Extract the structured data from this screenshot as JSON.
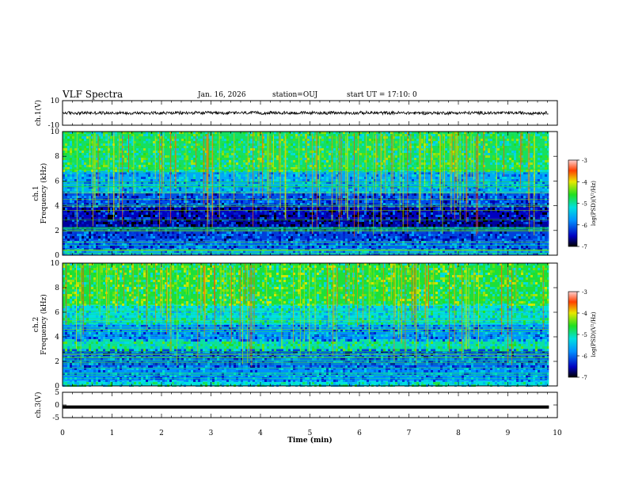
{
  "header": {
    "title": "VLF Spectra",
    "date": "Jan. 16, 2026",
    "station": "station=OUJ",
    "start": "start UT =  17:10: 0"
  },
  "chart_data": [
    {
      "type": "line",
      "name": "ch1-waveform",
      "ylabel": "ch.1(V)",
      "ylim": [
        -10,
        10
      ],
      "yticks": [
        "10",
        "-10"
      ],
      "xlim": [
        0,
        10
      ],
      "trace_amplitude": [
        -1.5,
        1.5
      ],
      "line_color": "#000000"
    },
    {
      "type": "heatmap",
      "name": "ch1-spectrogram",
      "ylabel_top": "ch.1",
      "ylabel": "Frequency (kHz)",
      "ylim": [
        0,
        10
      ],
      "yticks": [
        "0",
        "2",
        "4",
        "6",
        "8",
        "10"
      ],
      "xlim": [
        0,
        9.83
      ],
      "colorbar": {
        "label": "log(PSD)(V²/Hz)",
        "ticks": [
          "-3",
          "-4",
          "-5",
          "-6",
          "-7"
        ],
        "range": [
          -7,
          -3
        ]
      },
      "bands_khz": [
        {
          "from": 0,
          "to": 0.5,
          "level": 0.35
        },
        {
          "from": 0.5,
          "to": 1.2,
          "level": 0.25
        },
        {
          "from": 1.2,
          "to": 2.2,
          "level": 0.2
        },
        {
          "from": 2.2,
          "to": 3.0,
          "level": 0.1
        },
        {
          "from": 3.0,
          "to": 4.0,
          "level": 0.12
        },
        {
          "from": 4.0,
          "to": 5.0,
          "level": 0.22
        },
        {
          "from": 5.0,
          "to": 6.8,
          "level": 0.35
        },
        {
          "from": 6.8,
          "to": 10.0,
          "level": 0.55
        }
      ]
    },
    {
      "type": "heatmap",
      "name": "ch2-spectrogram",
      "ylabel_top": "ch.2",
      "ylabel": "Frequency (kHz)",
      "ylim": [
        0,
        10
      ],
      "yticks": [
        "0",
        "2",
        "4",
        "6",
        "8",
        "10"
      ],
      "xlim": [
        0,
        9.83
      ],
      "colorbar": {
        "label": "log(PSD)(V²/Hz)",
        "ticks": [
          "-3",
          "-4",
          "-5",
          "-6",
          "-7"
        ],
        "range": [
          -7,
          -3
        ]
      },
      "bands_khz": [
        {
          "from": 0,
          "to": 0.4,
          "level": 0.45
        },
        {
          "from": 0.4,
          "to": 1.5,
          "level": 0.3
        },
        {
          "from": 1.5,
          "to": 2.5,
          "level": 0.25
        },
        {
          "from": 2.5,
          "to": 3.0,
          "level": 0.2
        },
        {
          "from": 3.0,
          "to": 3.8,
          "level": 0.5
        },
        {
          "from": 3.8,
          "to": 5.0,
          "level": 0.3
        },
        {
          "from": 5.0,
          "to": 6.6,
          "level": 0.45
        },
        {
          "from": 6.6,
          "to": 10.0,
          "level": 0.58
        }
      ]
    },
    {
      "type": "line",
      "name": "ch3-waveform",
      "ylabel": "ch.3(V)",
      "ylim": [
        -5,
        5
      ],
      "yticks": [
        "5",
        "0",
        "-5"
      ],
      "xlim": [
        0,
        10
      ],
      "trace_value": -0.5,
      "line_color": "#000000"
    }
  ],
  "time_axis": {
    "xlabel": "Time (min)",
    "ticks": [
      "0",
      "1",
      "2",
      "3",
      "4",
      "5",
      "6",
      "7",
      "8",
      "9",
      "10"
    ]
  }
}
